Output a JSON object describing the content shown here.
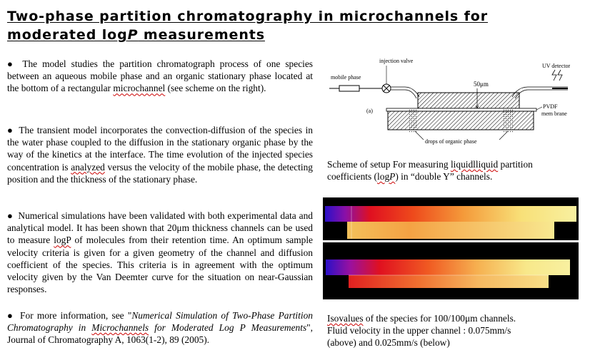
{
  "title": {
    "line1": "Two-phase partition chromatography in microchannels for",
    "line2_pre": "moderated log",
    "line2_italic": "P",
    "line2_post": " measurements"
  },
  "paragraphs": {
    "p1": {
      "bullet": "●",
      "pre": "The model studies the partition chromatograph process of one species between an aqueous mobile phase and an organic stationary phase located at the bottom of a rectangular ",
      "spell": "microchannel",
      "post": " (see scheme on the right)."
    },
    "p2": {
      "bullet": "●",
      "pre": "The transient model incorporates the convection-diffusion of the species in the water phase coupled to the diffusion in the stationary organic phase by the way of the kinetics at the interface. The time evolution of the injected species concentration is ",
      "spell": "analyzed",
      "post": " versus the velocity of the mobile phase, the detecting position and the thickness of the stationary phase."
    },
    "p3": {
      "bullet": "●",
      "pre": "Numerical simulations have been validated with both experimental data and analytical model. It has been shown that 20μm thickness channels can be used to measure ",
      "spell": "logP",
      "post": " of molecules from their retention time. An optimum sample velocity criteria is given for a given geometry of the channel and diffusion coefficient of the species. This criteria is in agreement with the optimum velocity given by the Van Deemter curve for the situation on near-Gaussian responses."
    },
    "p4": {
      "bullet": "●",
      "pre": "For more information, see \"",
      "italic1": "Numerical Simulation of Two-Phase Partition Chromatography in ",
      "spell": "Microchannels",
      "italic2": " for Moderated Log P Measurements",
      "post": "\", Journal of Chromatography A, 1063(1-2), 89 (2005)."
    }
  },
  "scheme": {
    "injection_valve": "injection valve",
    "mobile_phase": "mobile phase",
    "uv_detector": "UV detector",
    "channel_height": "50μm",
    "pvdf": "PVDF",
    "membrane": "mem brane",
    "panel": "(a)",
    "drops": "drops of organic phase"
  },
  "scheme_caption": {
    "pre": "Scheme of setup For measuring ",
    "spell1": "liquidlliquid",
    "mid": " partition coefficients (",
    "spell2": "log",
    "spell2_italic": "P",
    "post": ") in “double Y” channels."
  },
  "sim_caption": {
    "line1": "Isovalues of the species for 100/100μm channels.",
    "line2": "Fluid velocity in the upper channel : 0.075mm/s",
    "line3": "(above) and 0.025mm/s (below)"
  },
  "colors": {
    "hot": "#e01020",
    "cold": "#2a10c8",
    "pale": "#f8f0a0",
    "warm": "#f49a3a"
  }
}
